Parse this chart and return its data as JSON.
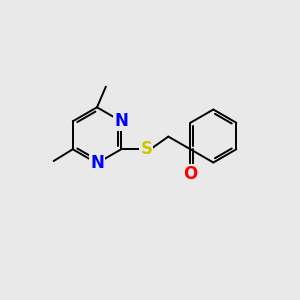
{
  "background_color": "#e9e9e9",
  "bond_color": "#000000",
  "N_color": "#0000ff",
  "O_color": "#ff0000",
  "S_color": "#c8c800",
  "bond_width": 1.4,
  "font_size": 12,
  "fig_size": [
    3.0,
    3.0
  ],
  "dpi": 100,
  "xlim": [
    0,
    10
  ],
  "ylim": [
    0,
    10
  ]
}
